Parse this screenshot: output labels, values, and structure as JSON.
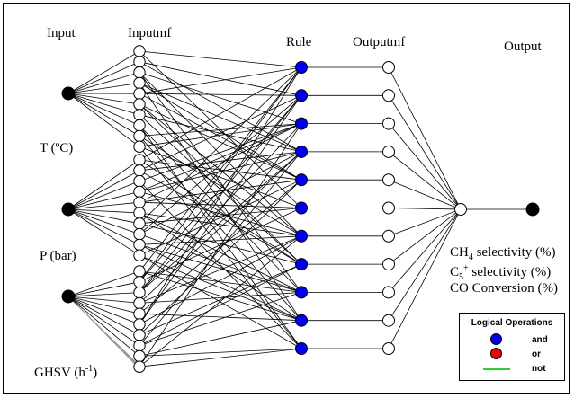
{
  "headers": {
    "input": "Input",
    "inputmf": "Inputmf",
    "rule": "Rule",
    "outputmf": "Outputmf",
    "output": "Output"
  },
  "inputs": [
    {
      "label": "T (ºC)"
    },
    {
      "label": "P (bar)"
    },
    {
      "label": "GHSV (h",
      "sup": "-1",
      "suffix": ")"
    }
  ],
  "outputs": [
    {
      "pre": "CH",
      "sub": "4",
      "post": " selectivity (%)"
    },
    {
      "pre": "C",
      "sub": "5",
      "sup": "+",
      "post": " selectivity (%)"
    },
    {
      "pre": "CO Conversion (%)"
    }
  ],
  "network": {
    "mf_per_input": 10,
    "rules": 11,
    "outputmfs": 11
  },
  "legend": {
    "title": "Logical Operations",
    "items": [
      {
        "label": "and",
        "color": "#0000ee"
      },
      {
        "label": "or",
        "color": "#ee0000"
      },
      {
        "label": "not",
        "color": "#33cc33"
      }
    ]
  },
  "colors": {
    "rule_node": "#0000ee",
    "input_node": "#000000",
    "mf_node": "#ffffff"
  }
}
